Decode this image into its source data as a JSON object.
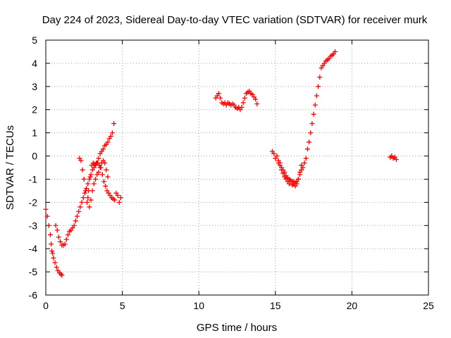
{
  "chart_data": {
    "type": "scatter",
    "title": "Day 224 of 2023, Sidereal Day-to-day VTEC variation (SDTVAR) for receiver murk",
    "xlabel": "GPS time / hours",
    "ylabel": "SDTVAR / TECUs",
    "xlim": [
      0,
      25
    ],
    "ylim": [
      -6,
      5
    ],
    "xticks": [
      "0",
      "5",
      "10",
      "15",
      "20",
      "25"
    ],
    "yticks": [
      "-6",
      "-5",
      "-4",
      "-3",
      "-2",
      "-1",
      "0",
      "1",
      "2",
      "3",
      "4",
      "5"
    ],
    "grid": true,
    "marker": "plus",
    "color": "#ff0000",
    "series": [
      {
        "name": "segment-1-descent",
        "x": [
          0.0,
          0.1,
          0.2,
          0.3,
          0.35,
          0.4,
          0.45,
          0.5,
          0.6,
          0.7,
          0.8,
          0.9,
          1.0,
          1.05
        ],
        "y": [
          -2.3,
          -2.6,
          -3.0,
          -3.4,
          -3.8,
          -4.1,
          -4.2,
          -4.4,
          -4.6,
          -4.8,
          -4.95,
          -5.05,
          -5.1,
          -5.15
        ]
      },
      {
        "name": "segment-1-rise",
        "x": [
          0.65,
          0.75,
          0.85,
          0.95,
          1.05,
          1.15,
          1.25,
          1.35,
          1.45,
          1.55,
          1.65,
          1.75,
          1.85,
          1.95,
          2.05,
          2.15,
          2.25,
          2.35,
          2.45,
          2.55,
          2.65,
          2.75,
          2.85,
          2.95,
          3.05,
          3.15,
          3.25,
          3.35,
          3.45,
          3.55,
          3.65,
          3.75,
          3.85,
          3.95,
          4.05,
          4.15,
          4.25,
          4.35,
          4.45
        ],
        "y": [
          -3.0,
          -3.2,
          -3.5,
          -3.7,
          -3.85,
          -3.85,
          -3.8,
          -3.6,
          -3.4,
          -3.25,
          -3.2,
          -3.1,
          -3.0,
          -2.8,
          -2.6,
          -2.4,
          -2.2,
          -2.0,
          -1.8,
          -1.6,
          -1.4,
          -1.2,
          -1.0,
          -0.8,
          -0.6,
          -0.5,
          -0.4,
          -0.3,
          -0.1,
          0.1,
          0.2,
          0.3,
          0.45,
          0.5,
          0.6,
          0.75,
          0.85,
          1.0,
          1.4
        ]
      },
      {
        "name": "segment-1-loop",
        "x": [
          2.2,
          2.3,
          2.4,
          2.5,
          2.6,
          2.7,
          2.8,
          2.9,
          3.0,
          3.1,
          3.2,
          3.3,
          3.4,
          3.5,
          3.6,
          3.7,
          3.8,
          3.9,
          4.0,
          4.1,
          4.2,
          4.3,
          4.4,
          4.5,
          4.6,
          4.7,
          4.8,
          4.9
        ],
        "y": [
          -0.1,
          -0.2,
          -0.6,
          -1.0,
          -1.5,
          -2.0,
          -1.5,
          -0.9,
          -0.4,
          -0.3,
          -0.35,
          -0.3,
          -0.3,
          -0.4,
          -0.5,
          -0.8,
          -1.1,
          -1.3,
          -1.5,
          -1.6,
          -1.7,
          -1.8,
          -1.85,
          -1.9,
          -1.6,
          -1.7,
          -2.0,
          -1.8
        ]
      },
      {
        "name": "segment-1-inner",
        "x": [
          2.75,
          2.85,
          2.95,
          3.05,
          3.15,
          3.25,
          3.35,
          3.45,
          3.55,
          3.65,
          3.75,
          3.85,
          3.95,
          4.05
        ],
        "y": [
          -1.8,
          -2.2,
          -1.9,
          -1.5,
          -1.2,
          -1.0,
          -0.8,
          -0.7,
          -0.5,
          -0.3,
          -0.2,
          -0.3,
          -0.6,
          -0.9
        ]
      },
      {
        "name": "segment-2",
        "x": [
          11.1,
          11.2,
          11.3,
          11.4,
          11.5,
          11.6,
          11.7,
          11.8,
          11.9,
          12.0,
          12.1,
          12.2,
          12.3,
          12.4,
          12.5,
          12.6,
          12.7,
          12.8,
          12.9,
          13.0,
          13.1,
          13.2,
          13.3,
          13.4,
          13.5,
          13.6,
          13.7,
          13.8
        ],
        "y": [
          2.5,
          2.6,
          2.7,
          2.5,
          2.3,
          2.25,
          2.3,
          2.2,
          2.3,
          2.25,
          2.2,
          2.25,
          2.2,
          2.1,
          2.05,
          2.1,
          2.0,
          2.1,
          2.3,
          2.5,
          2.7,
          2.75,
          2.8,
          2.7,
          2.65,
          2.55,
          2.45,
          2.25
        ]
      },
      {
        "name": "segment-3",
        "x": [
          14.8,
          14.9,
          15.0,
          15.1,
          15.2,
          15.3,
          15.4,
          15.5,
          15.6,
          15.7,
          15.8,
          15.9,
          16.0,
          16.1,
          16.2,
          16.3,
          16.4,
          16.5,
          16.6,
          16.7,
          16.8,
          16.9,
          17.0,
          17.1,
          17.2,
          17.3,
          17.4,
          17.5,
          17.6,
          17.7,
          17.8,
          17.9,
          18.0,
          18.1,
          18.2,
          18.3,
          18.4,
          18.5,
          18.6,
          18.7,
          18.8,
          18.9
        ],
        "y": [
          0.2,
          0.1,
          -0.1,
          0.0,
          -0.2,
          -0.3,
          -0.5,
          -0.6,
          -0.7,
          -0.85,
          -0.95,
          -1.0,
          -1.05,
          -1.1,
          -1.2,
          -1.15,
          -1.1,
          -1.0,
          -0.8,
          -0.6,
          -0.5,
          -0.3,
          -0.1,
          0.3,
          0.6,
          1.0,
          1.4,
          1.8,
          2.2,
          2.6,
          3.0,
          3.4,
          3.8,
          3.9,
          4.0,
          4.1,
          4.15,
          4.2,
          4.3,
          4.35,
          4.4,
          4.5
        ]
      },
      {
        "name": "segment-3-lower",
        "x": [
          15.2,
          15.3,
          15.4,
          15.5,
          15.6,
          15.7,
          15.8,
          15.9,
          16.0,
          16.1,
          16.2,
          16.3,
          16.4,
          16.5,
          16.6,
          16.7
        ],
        "y": [
          -0.3,
          -0.4,
          -0.6,
          -0.75,
          -0.9,
          -1.0,
          -1.1,
          -1.2,
          -1.1,
          -1.25,
          -1.1,
          -1.3,
          -1.2,
          -1.0,
          -0.7,
          -0.4
        ]
      },
      {
        "name": "segment-4",
        "x": [
          22.5,
          22.6,
          22.7,
          22.8,
          22.9
        ],
        "y": [
          -0.05,
          0.0,
          -0.1,
          -0.05,
          -0.15
        ]
      }
    ]
  }
}
